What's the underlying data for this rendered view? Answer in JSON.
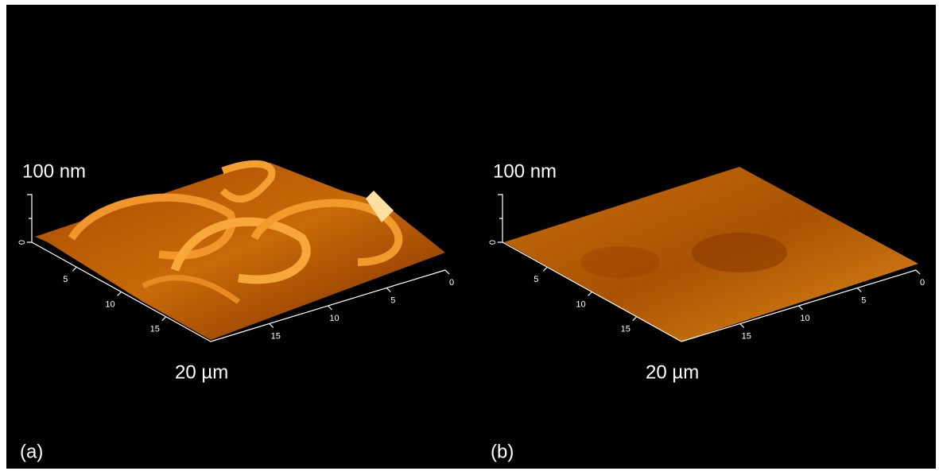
{
  "panels": [
    {
      "label": "(a)",
      "z_axis": {
        "label": "100 nm",
        "ticks": [
          "0"
        ]
      },
      "x_axis": {
        "label": "20 µm",
        "ticks": [
          "5",
          "10",
          "15"
        ]
      },
      "y_axis": {
        "ticks": [
          "15",
          "10",
          "5",
          "0"
        ]
      }
    },
    {
      "label": "(b)",
      "z_axis": {
        "label": "100 nm",
        "ticks": [
          "0"
        ]
      },
      "x_axis": {
        "label": "20 µm",
        "ticks": [
          "5",
          "10",
          "15"
        ]
      },
      "y_axis": {
        "ticks": [
          "15",
          "10",
          "5",
          "0"
        ]
      }
    }
  ]
}
